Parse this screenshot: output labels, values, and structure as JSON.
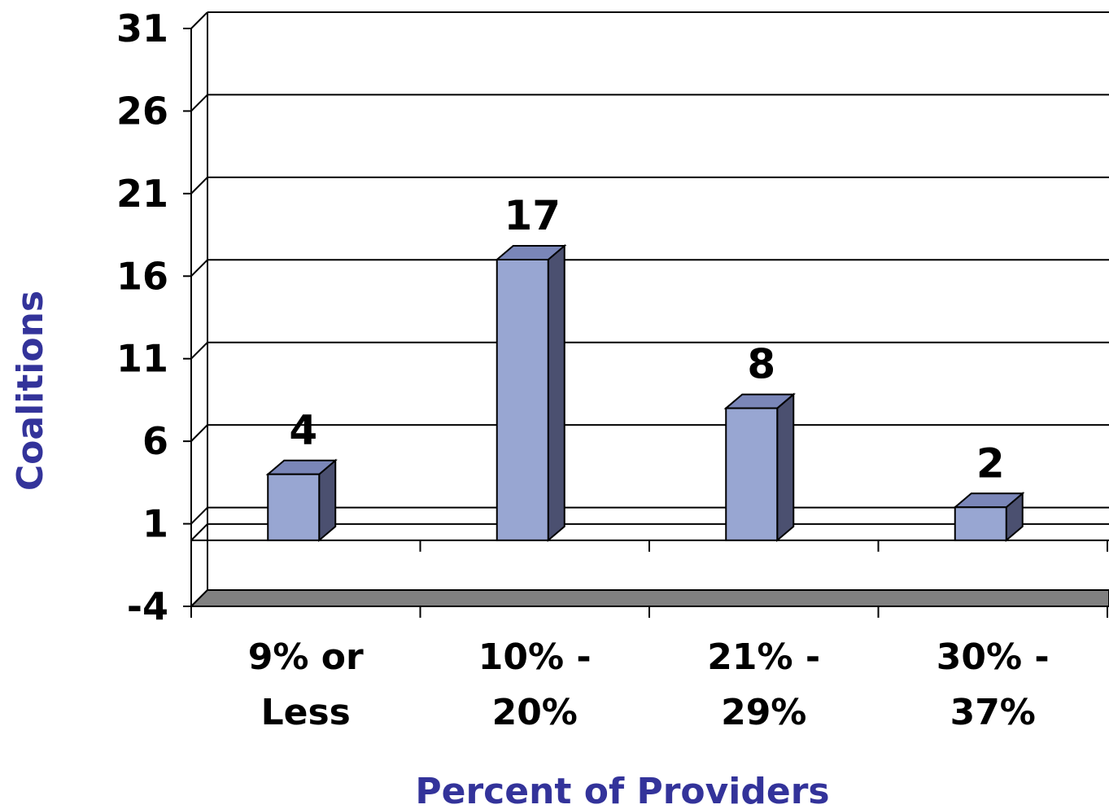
{
  "chart_data": {
    "type": "bar",
    "categories": [
      "9% or Less",
      "10% - 20%",
      "21% - 29%",
      "30% - 37%"
    ],
    "category_lines": [
      [
        "9% or",
        "Less"
      ],
      [
        "10% -",
        "20%"
      ],
      [
        "21% -",
        "29%"
      ],
      [
        "30% -",
        "37%"
      ]
    ],
    "values": [
      4,
      17,
      8,
      2
    ],
    "data_labels": [
      "4",
      "17",
      "8",
      "2"
    ],
    "xlabel": "Percent of Providers",
    "ylabel": "Coalitions",
    "ylim": [
      -4,
      31
    ],
    "yticks": [
      31,
      26,
      21,
      16,
      11,
      6,
      1,
      -4
    ],
    "grid": true,
    "colors": {
      "bar_front": "#98a6d2",
      "bar_side": "#4b5070",
      "bar_top": "#7a86b8",
      "floor": "#808080",
      "axis_title": "#33339a"
    }
  }
}
